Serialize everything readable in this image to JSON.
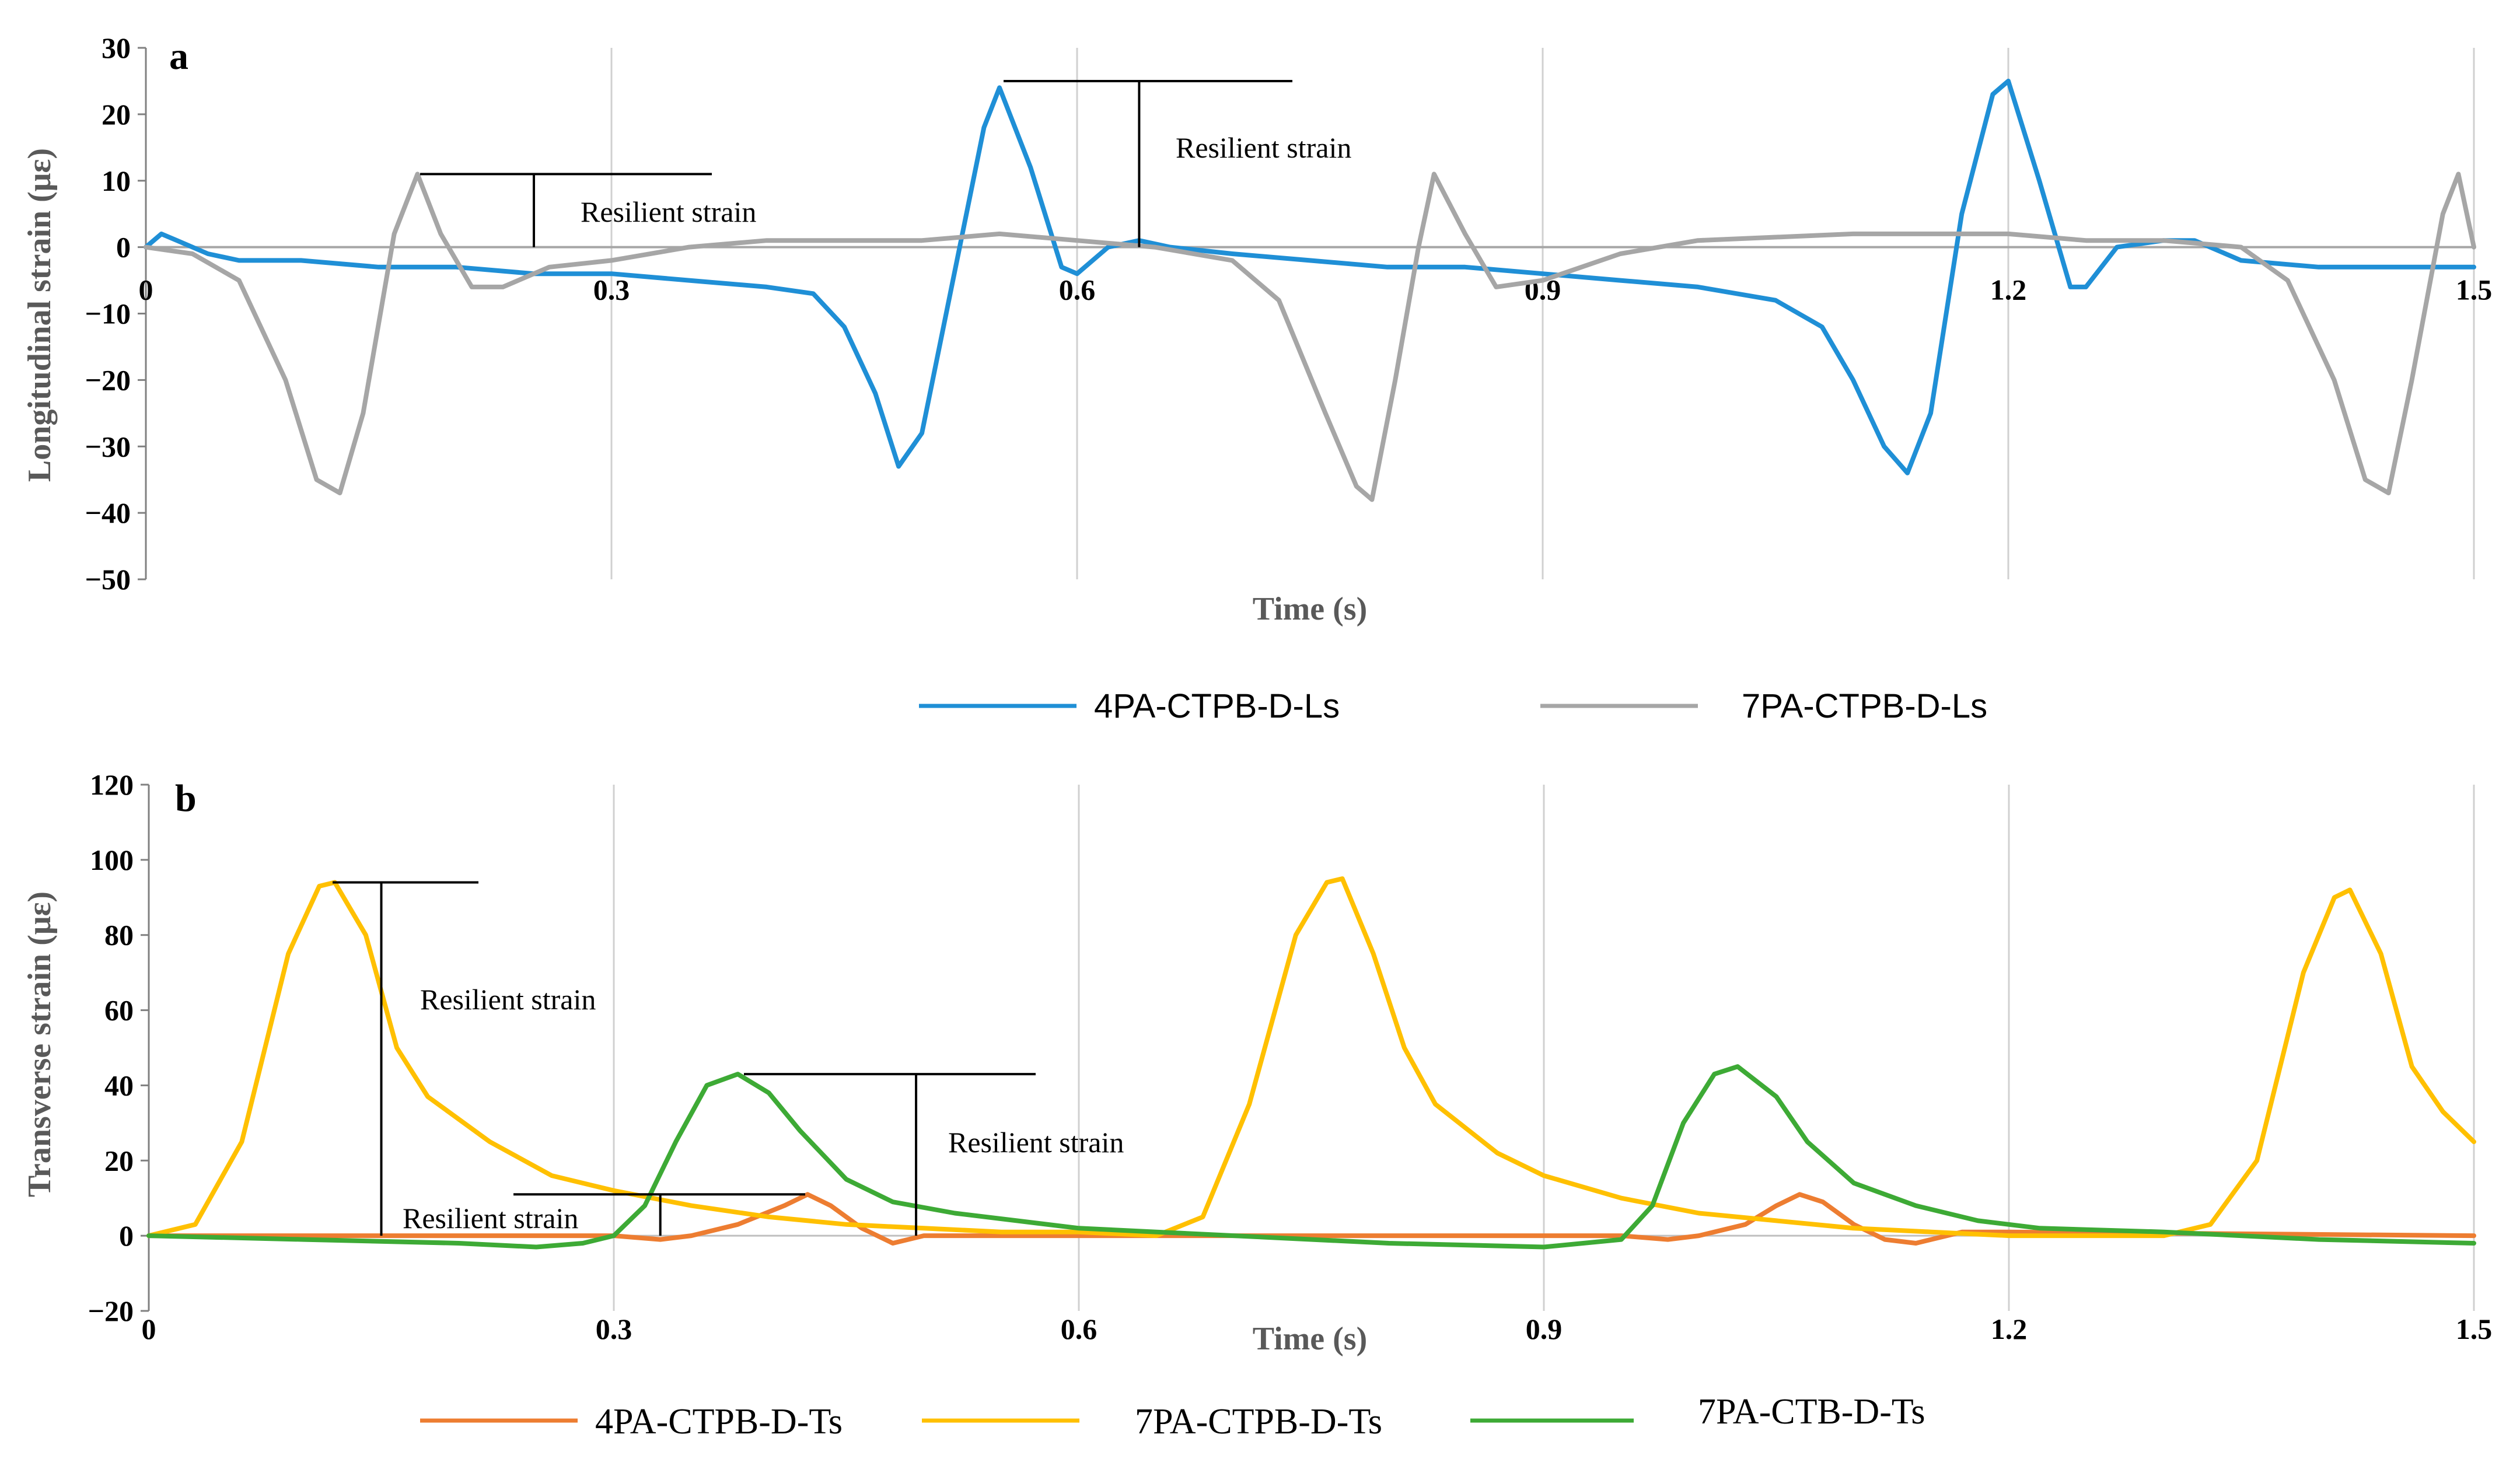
{
  "chart_data": [
    {
      "panel": "a",
      "type": "line",
      "xlabel": "Time (s)",
      "ylabel": "Longitudinal strain (με)",
      "xlim": [
        0,
        1.5
      ],
      "ylim": [
        -50,
        30
      ],
      "x_ticks": [
        0,
        0.3,
        0.6,
        0.9,
        1.2,
        1.5
      ],
      "x_tick_labels": [
        "0",
        "0.3",
        "0.6",
        "0.9",
        "1.2",
        "1.5"
      ],
      "y_ticks": [
        30,
        20,
        10,
        0,
        -10,
        -20,
        -30,
        -40,
        -50
      ],
      "y_tick_labels": [
        "30",
        "20",
        "10",
        "0",
        "−10",
        "−20",
        "−30",
        "−40",
        "−50"
      ],
      "grid": "vertical",
      "legend_position": "bottom",
      "series": [
        {
          "name": "4PA-CTPB-D-Ls",
          "color": "#1f8fd6",
          "x": [
            0,
            0.01,
            0.02,
            0.04,
            0.06,
            0.1,
            0.15,
            0.2,
            0.25,
            0.3,
            0.35,
            0.4,
            0.43,
            0.45,
            0.47,
            0.485,
            0.5,
            0.52,
            0.54,
            0.55,
            0.57,
            0.59,
            0.6,
            0.62,
            0.64,
            0.66,
            0.7,
            0.75,
            0.8,
            0.85,
            0.9,
            0.95,
            1.0,
            1.05,
            1.08,
            1.1,
            1.12,
            1.135,
            1.15,
            1.17,
            1.19,
            1.2,
            1.22,
            1.24,
            1.25,
            1.27,
            1.3,
            1.32,
            1.35,
            1.4,
            1.45,
            1.5
          ],
          "y": [
            0,
            2,
            1,
            -1,
            -2,
            -2,
            -3,
            -3,
            -4,
            -4,
            -5,
            -6,
            -7,
            -12,
            -22,
            -33,
            -28,
            -5,
            18,
            24,
            12,
            -3,
            -4,
            0,
            1,
            0,
            -1,
            -2,
            -3,
            -3,
            -4,
            -5,
            -6,
            -8,
            -12,
            -20,
            -30,
            -34,
            -25,
            5,
            23,
            25,
            10,
            -6,
            -6,
            0,
            1,
            1,
            -2,
            -3,
            -3,
            -3
          ]
        },
        {
          "name": "7PA-CTPB-D-Ls",
          "color": "#a6a6a6",
          "x": [
            0,
            0.03,
            0.06,
            0.09,
            0.11,
            0.125,
            0.14,
            0.16,
            0.175,
            0.19,
            0.21,
            0.23,
            0.26,
            0.3,
            0.35,
            0.4,
            0.45,
            0.5,
            0.55,
            0.6,
            0.65,
            0.7,
            0.73,
            0.76,
            0.78,
            0.79,
            0.805,
            0.82,
            0.83,
            0.85,
            0.87,
            0.9,
            0.95,
            1.0,
            1.1,
            1.2,
            1.25,
            1.3,
            1.35,
            1.38,
            1.41,
            1.43,
            1.445,
            1.46,
            1.48,
            1.49,
            1.5
          ],
          "y": [
            0,
            -1,
            -5,
            -20,
            -35,
            -37,
            -25,
            2,
            11,
            2,
            -6,
            -6,
            -3,
            -2,
            0,
            1,
            1,
            1,
            2,
            1,
            0,
            -2,
            -8,
            -25,
            -36,
            -38,
            -20,
            0,
            11,
            2,
            -6,
            -5,
            -1,
            1,
            2,
            2,
            1,
            1,
            0,
            -5,
            -20,
            -35,
            -37,
            -20,
            5,
            11,
            0
          ]
        }
      ],
      "annotations": [
        {
          "text": "Resilient strain",
          "series": "7PA-CTPB-D-Ls",
          "from": 11,
          "to": 0,
          "at_x": 0.25
        },
        {
          "text": "Resilient strain",
          "series": "4PA-CTPB-D-Ls",
          "from": 25,
          "to": 0,
          "at_x": 0.64
        }
      ]
    },
    {
      "panel": "b",
      "type": "line",
      "xlabel": "Time (s)",
      "ylabel": "Transverse strain (με)",
      "xlim": [
        0,
        1.5
      ],
      "ylim": [
        -20,
        120
      ],
      "x_ticks": [
        0,
        0.3,
        0.6,
        0.9,
        1.2,
        1.5
      ],
      "x_tick_labels": [
        "0",
        "0.3",
        "0.6",
        "0.9",
        "1.2",
        "1.5"
      ],
      "y_ticks": [
        120,
        100,
        80,
        60,
        40,
        20,
        0,
        -20
      ],
      "y_tick_labels": [
        "120",
        "100",
        "80",
        "60",
        "40",
        "20",
        "0",
        "−20"
      ],
      "grid": "vertical",
      "legend_position": "bottom",
      "series": [
        {
          "name": "4PA-CTPB-D-Ts",
          "color": "#ed7d31",
          "x": [
            0,
            0.3,
            0.33,
            0.35,
            0.38,
            0.41,
            0.425,
            0.44,
            0.46,
            0.48,
            0.5,
            0.55,
            0.9,
            0.95,
            0.98,
            1.0,
            1.03,
            1.05,
            1.065,
            1.08,
            1.1,
            1.12,
            1.14,
            1.17,
            1.2,
            1.5
          ],
          "y": [
            0,
            0,
            -1,
            0,
            3,
            8,
            11,
            8,
            2,
            -2,
            0,
            0,
            0,
            0,
            -1,
            0,
            3,
            8,
            11,
            9,
            3,
            -1,
            -2,
            1,
            1,
            0
          ]
        },
        {
          "name": "7PA-CTPB-D-Ts",
          "color": "#ffc000",
          "x": [
            0,
            0.03,
            0.06,
            0.09,
            0.11,
            0.12,
            0.14,
            0.16,
            0.18,
            0.22,
            0.26,
            0.3,
            0.35,
            0.4,
            0.45,
            0.5,
            0.55,
            0.6,
            0.65,
            0.68,
            0.71,
            0.74,
            0.76,
            0.77,
            0.79,
            0.81,
            0.83,
            0.87,
            0.9,
            0.95,
            1.0,
            1.05,
            1.1,
            1.15,
            1.2,
            1.25,
            1.3,
            1.33,
            1.36,
            1.39,
            1.41,
            1.42,
            1.44,
            1.46,
            1.48,
            1.5
          ],
          "y": [
            0,
            3,
            25,
            75,
            93,
            94,
            80,
            50,
            37,
            25,
            16,
            12,
            8,
            5,
            3,
            2,
            1,
            1,
            0,
            5,
            35,
            80,
            94,
            95,
            75,
            50,
            35,
            22,
            16,
            10,
            6,
            4,
            2,
            1,
            0,
            0,
            0,
            3,
            20,
            70,
            90,
            92,
            75,
            45,
            33,
            25
          ]
        },
        {
          "name": "7PA-CTB-D-Ts",
          "color": "#3daa35",
          "x": [
            0,
            0.1,
            0.2,
            0.25,
            0.28,
            0.3,
            0.32,
            0.34,
            0.36,
            0.38,
            0.4,
            0.42,
            0.45,
            0.48,
            0.52,
            0.56,
            0.6,
            0.65,
            0.7,
            0.8,
            0.9,
            0.95,
            0.97,
            0.99,
            1.01,
            1.025,
            1.05,
            1.07,
            1.1,
            1.14,
            1.18,
            1.22,
            1.3,
            1.4,
            1.5
          ],
          "y": [
            0,
            -1,
            -2,
            -3,
            -2,
            0,
            8,
            25,
            40,
            43,
            38,
            28,
            15,
            9,
            6,
            4,
            2,
            1,
            0,
            -2,
            -3,
            -1,
            8,
            30,
            43,
            45,
            37,
            25,
            14,
            8,
            4,
            2,
            1,
            -1,
            -2
          ]
        }
      ],
      "annotations": [
        {
          "text": "Resilient strain",
          "series": "7PA-CTPB-D-Ts",
          "from": 94,
          "to": 0,
          "at_x": 0.15
        },
        {
          "text": "Resilient strain",
          "series": "7PA-CTB-D-Ts",
          "from": 43,
          "to": 0,
          "at_x": 0.495
        },
        {
          "text": "Resilient strain",
          "series": "4PA-CTPB-D-Ts",
          "from": 11,
          "to": 0,
          "at_x": 0.33
        }
      ]
    }
  ]
}
